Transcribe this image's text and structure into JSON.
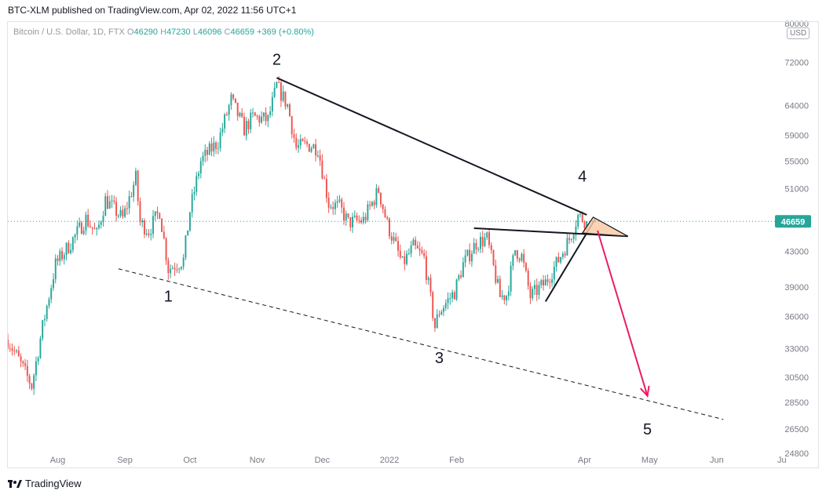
{
  "header": {
    "publisher_line": "BTC-XLM published on TradingView.com, Apr 02, 2022 11:56 UTC+1"
  },
  "legend": {
    "symbol": "Bitcoin / U.S. Dollar, 1D, FTX",
    "open_label": "O",
    "open": "46290",
    "high_label": "H",
    "high": "47230",
    "low_label": "L",
    "low": "46096",
    "close_label": "C",
    "close": "46659",
    "change": "+369 (+0.80%)"
  },
  "currency": "USD",
  "footer": {
    "brand": "TradingView"
  },
  "colors": {
    "up": "#26a69a",
    "down": "#ef5350",
    "last_price": "#26a69a",
    "arrow": "#e91e63",
    "triangle_fill": "#f9cba7"
  },
  "chart_data": {
    "type": "candlestick",
    "title": "",
    "x_range": [
      "2021-07-09",
      "2022-06-30"
    ],
    "y_range": [
      24800,
      80000
    ],
    "y_scale": "log",
    "y_ticks": [
      "80000",
      "72000",
      "64000",
      "59000",
      "55000",
      "51000",
      "43000",
      "39000",
      "36000",
      "33000",
      "30500",
      "28500",
      "26500",
      "24800"
    ],
    "x_ticks": [
      {
        "label": "Aug",
        "date": "2021-08-01"
      },
      {
        "label": "Sep",
        "date": "2021-09-01"
      },
      {
        "label": "Oct",
        "date": "2021-10-01"
      },
      {
        "label": "Nov",
        "date": "2021-11-01"
      },
      {
        "label": "Dec",
        "date": "2021-12-01"
      },
      {
        "label": "2022",
        "date": "2022-01-01"
      },
      {
        "label": "Feb",
        "date": "2022-02-01"
      },
      {
        "label": "Apr",
        "date": "2022-04-01"
      },
      {
        "label": "May",
        "date": "2022-05-01"
      },
      {
        "label": "Jun",
        "date": "2022-06-01"
      },
      {
        "label": "Ju",
        "date": "2022-07-01"
      }
    ],
    "last_price": "46659",
    "price_path": [
      [
        "2021-07-09",
        33800
      ],
      [
        "2021-07-14",
        32000
      ],
      [
        "2021-07-20",
        29800
      ],
      [
        "2021-07-25",
        35000
      ],
      [
        "2021-07-31",
        41500
      ],
      [
        "2021-08-07",
        44000
      ],
      [
        "2021-08-14",
        47000
      ],
      [
        "2021-08-19",
        45000
      ],
      [
        "2021-08-23",
        49500
      ],
      [
        "2021-08-31",
        47000
      ],
      [
        "2021-09-06",
        52500
      ],
      [
        "2021-09-08",
        46500
      ],
      [
        "2021-09-12",
        45500
      ],
      [
        "2021-09-17",
        48000
      ],
      [
        "2021-09-21",
        41000
      ],
      [
        "2021-09-28",
        42000
      ],
      [
        "2021-10-01",
        48000
      ],
      [
        "2021-10-06",
        55000
      ],
      [
        "2021-10-14",
        58000
      ],
      [
        "2021-10-20",
        65000
      ],
      [
        "2021-10-26",
        60000
      ],
      [
        "2021-10-30",
        62000
      ],
      [
        "2021-11-06",
        61500
      ],
      [
        "2021-11-10",
        67500
      ],
      [
        "2021-11-15",
        64000
      ],
      [
        "2021-11-19",
        57000
      ],
      [
        "2021-11-24",
        57500
      ],
      [
        "2021-11-29",
        57000
      ],
      [
        "2021-12-04",
        49000
      ],
      [
        "2021-12-09",
        48500
      ],
      [
        "2021-12-13",
        46500
      ],
      [
        "2021-12-20",
        46800
      ],
      [
        "2021-12-27",
        50800
      ],
      [
        "2021-12-31",
        46300
      ],
      [
        "2022-01-07",
        41500
      ],
      [
        "2022-01-12",
        43500
      ],
      [
        "2022-01-17",
        42200
      ],
      [
        "2022-01-22",
        35000
      ],
      [
        "2022-01-24",
        36500
      ],
      [
        "2022-01-31",
        38500
      ],
      [
        "2022-02-04",
        41500
      ],
      [
        "2022-02-10",
        44000
      ],
      [
        "2022-02-15",
        44500
      ],
      [
        "2022-02-21",
        38000
      ],
      [
        "2022-02-24",
        38200
      ],
      [
        "2022-02-28",
        43200
      ],
      [
        "2022-03-03",
        42400
      ],
      [
        "2022-03-07",
        38000
      ],
      [
        "2022-03-14",
        39500
      ],
      [
        "2022-03-20",
        42000
      ],
      [
        "2022-03-25",
        44500
      ],
      [
        "2022-03-29",
        47400
      ],
      [
        "2022-04-02",
        46659
      ]
    ],
    "trendlines": [
      {
        "style": "solid",
        "points": [
          [
            "2021-11-10",
            69000
          ],
          [
            "2022-04-02",
            47500
          ]
        ]
      },
      {
        "style": "solid",
        "points": [
          [
            "2022-02-09",
            45800
          ],
          [
            "2022-04-21",
            44800
          ]
        ]
      },
      {
        "style": "solid",
        "points": [
          [
            "2022-03-14",
            37500
          ],
          [
            "2022-04-06",
            47000
          ]
        ]
      },
      {
        "style": "dashed",
        "points": [
          [
            "2021-08-29",
            41000
          ],
          [
            "2022-06-04",
            27200
          ]
        ]
      }
    ],
    "triangle_pattern": [
      [
        "2022-03-31",
        45200
      ],
      [
        "2022-04-05",
        47200
      ],
      [
        "2022-04-21",
        44800
      ]
    ],
    "projection_arrow": [
      [
        "2022-04-07",
        45500
      ],
      [
        "2022-04-30",
        29000
      ]
    ],
    "wave_labels": [
      {
        "label": "1",
        "date": "2021-09-21",
        "price": 37500
      },
      {
        "label": "2",
        "date": "2021-11-10",
        "price": 71500
      },
      {
        "label": "3",
        "date": "2022-01-24",
        "price": 31700
      },
      {
        "label": "4",
        "date": "2022-03-31",
        "price": 52000
      },
      {
        "label": "5",
        "date": "2022-04-30",
        "price": 26100
      }
    ]
  }
}
